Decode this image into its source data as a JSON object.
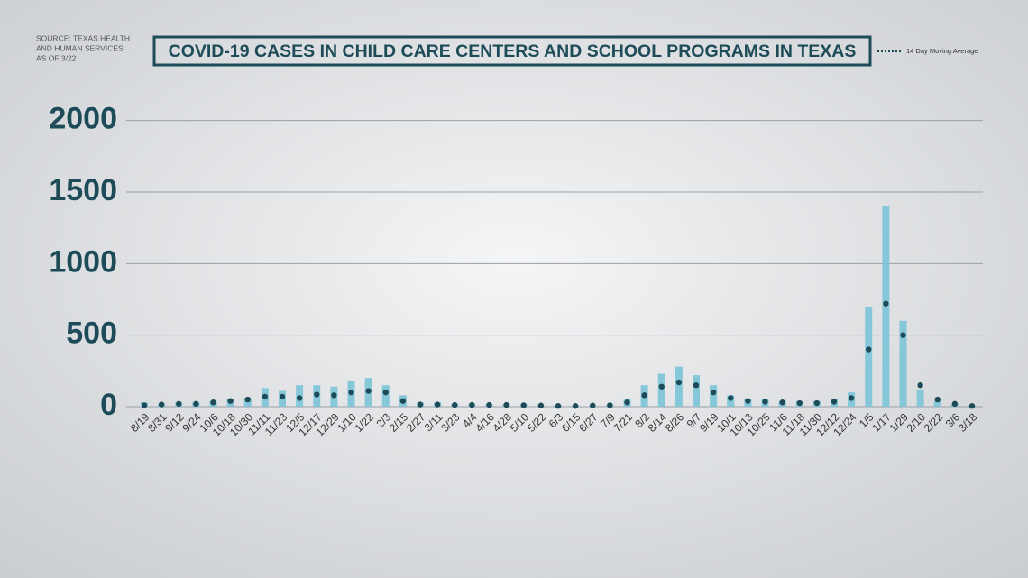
{
  "chart_data": {
    "type": "bar",
    "title": "COVID-19 CASES IN CHILD CARE CENTERS AND SCHOOL PROGRAMS IN TEXAS",
    "source": [
      "SOURCE: TEXAS HEALTH",
      "AND HUMAN SERVICES",
      "AS OF 3/22"
    ],
    "categories": [
      "8/19",
      "8/31",
      "9/12",
      "9/24",
      "10/6",
      "10/18",
      "10/30",
      "11/11",
      "11/23",
      "12/5",
      "12/17",
      "12/29",
      "1/10",
      "1/22",
      "2/3",
      "2/15",
      "2/27",
      "3/11",
      "3/23",
      "4/4",
      "4/16",
      "4/28",
      "5/10",
      "5/22",
      "6/3",
      "6/15",
      "6/27",
      "7/9",
      "7/21",
      "8/2",
      "8/14",
      "8/26",
      "9/7",
      "9/19",
      "10/1",
      "10/13",
      "10/25",
      "11/6",
      "11/18",
      "11/30",
      "12/12",
      "12/24",
      "1/5",
      "1/17",
      "1/29",
      "2/10",
      "2/22",
      "3/6",
      "3/18"
    ],
    "bars": {
      "color": "#7cc3d8",
      "values": [
        30,
        20,
        30,
        30,
        40,
        50,
        60,
        130,
        110,
        150,
        150,
        140,
        180,
        200,
        150,
        80,
        30,
        30,
        20,
        20,
        20,
        20,
        15,
        10,
        10,
        10,
        10,
        15,
        50,
        150,
        230,
        280,
        220,
        150,
        80,
        50,
        50,
        40,
        40,
        40,
        50,
        100,
        700,
        1400,
        600,
        120,
        40,
        20,
        10
      ]
    },
    "series": [
      {
        "name": "14 Day Moving Average",
        "color": "#1d4c58",
        "values": [
          10,
          15,
          20,
          20,
          30,
          40,
          50,
          70,
          70,
          60,
          85,
          80,
          100,
          110,
          100,
          40,
          15,
          15,
          12,
          12,
          12,
          12,
          10,
          8,
          5,
          5,
          8,
          10,
          30,
          80,
          140,
          170,
          150,
          100,
          60,
          40,
          35,
          30,
          25,
          25,
          35,
          60,
          400,
          720,
          500,
          150,
          50,
          20,
          5
        ]
      }
    ],
    "ylim": [
      0,
      2250
    ],
    "yticks": [
      0,
      500,
      1000,
      1500,
      2000
    ],
    "grid": true,
    "legend": "top-right"
  }
}
